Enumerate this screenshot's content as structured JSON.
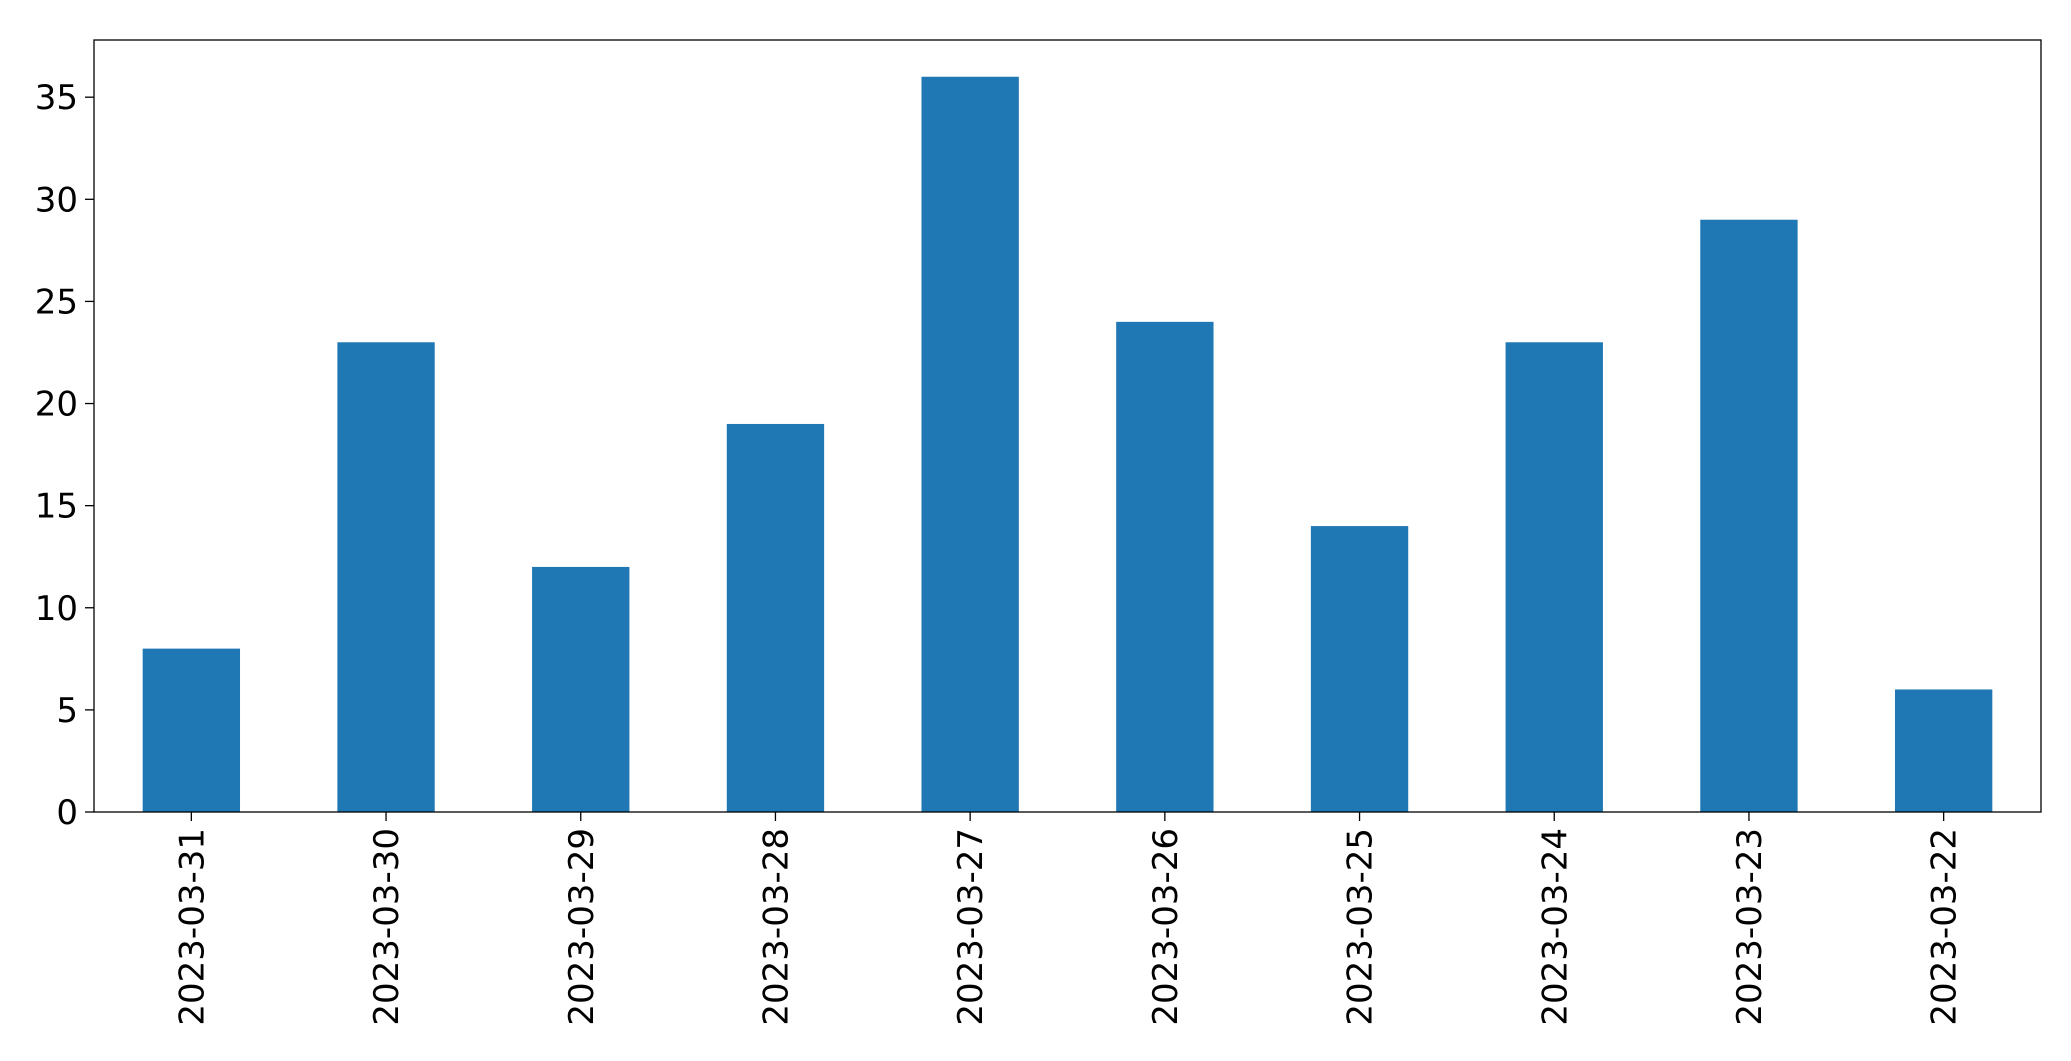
{
  "chart_data": {
    "type": "bar",
    "categories": [
      "2023-03-31",
      "2023-03-30",
      "2023-03-29",
      "2023-03-28",
      "2023-03-27",
      "2023-03-26",
      "2023-03-25",
      "2023-03-24",
      "2023-03-23",
      "2023-03-22"
    ],
    "values": [
      8,
      23,
      12,
      19,
      36,
      24,
      14,
      23,
      29,
      6
    ],
    "color": "#1f77b4",
    "ylim": [
      0,
      37.8
    ],
    "yticks": [
      0,
      5,
      10,
      15,
      20,
      25,
      30,
      35
    ],
    "grid": false
  }
}
